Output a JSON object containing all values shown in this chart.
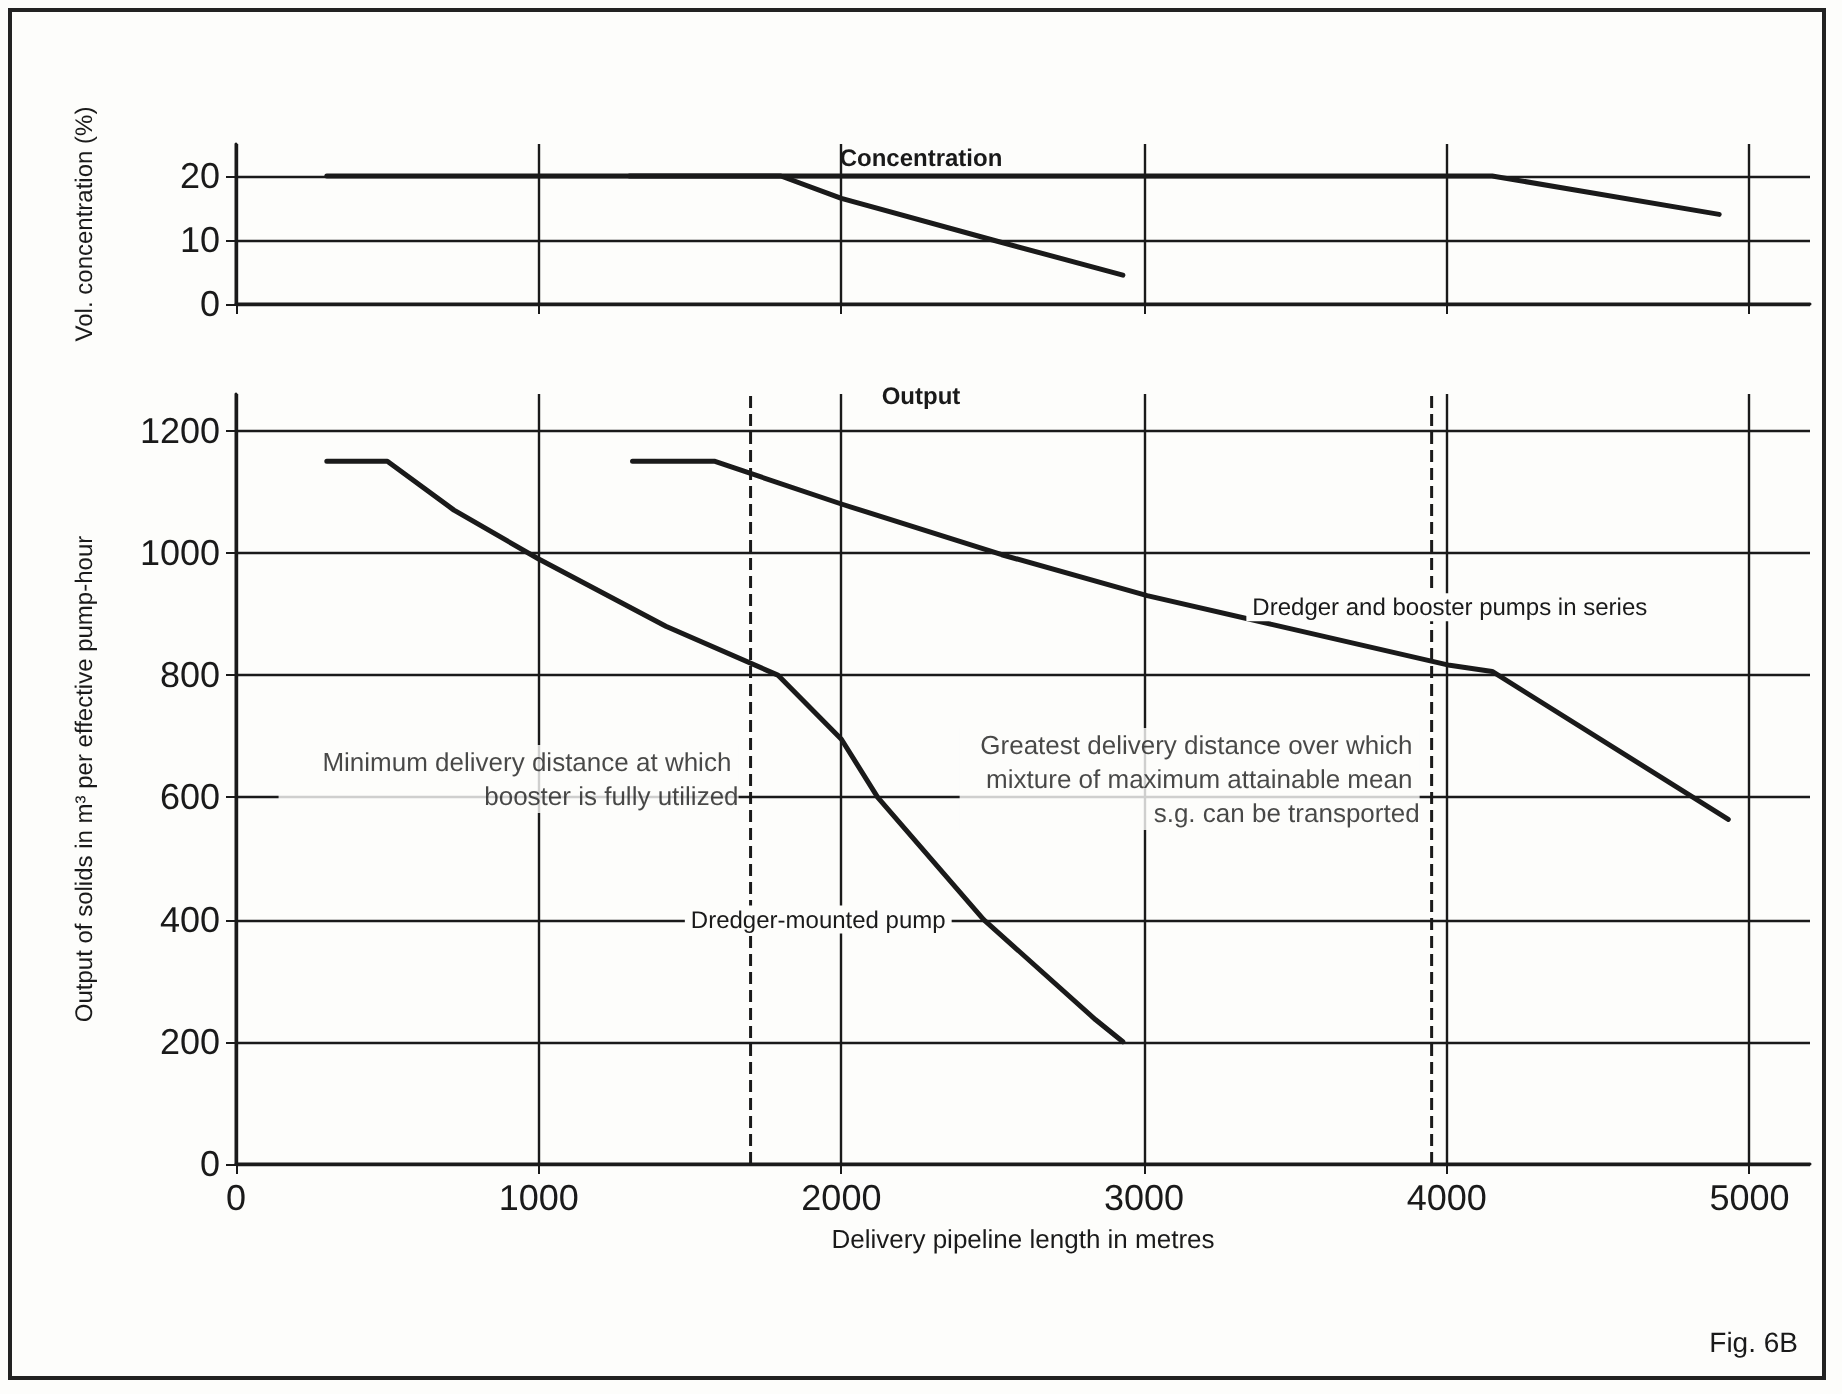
{
  "chart_data": [
    {
      "type": "line",
      "title": "Concentration",
      "ylabel": "Vol. concentration (%)",
      "xlim": [
        0,
        5200
      ],
      "xticks": [
        0,
        1000,
        2000,
        3000,
        4000,
        5000
      ],
      "ylim": [
        0,
        25
      ],
      "yticks": [
        0,
        10,
        20
      ],
      "tick_labels": "y",
      "grid": true,
      "marker": "none",
      "line_style": "solid",
      "series": [
        {
          "color": "#1a1a1a",
          "x": [
            300,
            1800,
            2000,
            2500,
            2930
          ],
          "values": [
            20,
            20,
            16.5,
            10,
            4.5
          ]
        },
        {
          "color": "#1a1a1a",
          "x": [
            1300,
            4150,
            4900
          ],
          "values": [
            20,
            20,
            14
          ]
        }
      ]
    },
    {
      "type": "line",
      "title": "Output",
      "xlabel": "Delivery pipeline length in metres",
      "ylabel": "Output of solids in m³ per effective pump-hour",
      "xlim": [
        0,
        5200
      ],
      "xticks": [
        0,
        1000,
        2000,
        3000,
        4000,
        5000
      ],
      "ylim": [
        0,
        1260
      ],
      "yticks": [
        0,
        200,
        400,
        600,
        800,
        1000,
        1200
      ],
      "grid": true,
      "marker": "none",
      "line_style": "solid",
      "series": [
        {
          "name": "Dredger-mounted pump",
          "color": "#1a1a1a",
          "x": [
            300,
            500,
            720,
            1000,
            1420,
            1790,
            2000,
            2120,
            2470,
            2840,
            2930
          ],
          "values": [
            1150,
            1150,
            1070,
            990,
            880,
            800,
            695,
            600,
            400,
            236,
            200
          ]
        },
        {
          "name": "Dredger and booster pumps in series",
          "color": "#1a1a1a",
          "x": [
            1310,
            1580,
            2000,
            2530,
            3010,
            4010,
            4150,
            4930
          ],
          "values": [
            1150,
            1150,
            1080,
            997,
            930,
            816,
            806,
            564
          ]
        }
      ],
      "ref_lines": [
        {
          "axis": "x",
          "value": 1700,
          "label": "Minimum delivery distance at which booster is fully utilized",
          "line_style": "dashed",
          "color": "#1a1a1a"
        },
        {
          "axis": "x",
          "value": 3950,
          "label": "Greatest delivery distance over which mixture of maximum attainable mean s.g. can be transported",
          "line_style": "dashed",
          "color": "#1a1a1a"
        }
      ],
      "annotations": [
        "Fig. 6B"
      ]
    }
  ]
}
